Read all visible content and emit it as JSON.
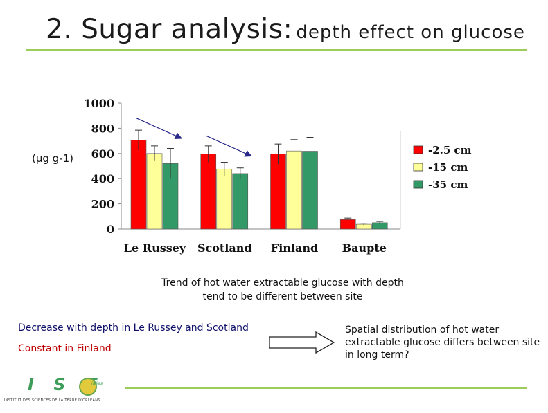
{
  "slide": {
    "title_main": "2. Sugar analysis:",
    "title_sub": "depth effect on glucose",
    "caption_line1": "Trend of hot water extractable glucose  with depth",
    "caption_line2": "tend to be different between site",
    "bullet_1": "Decrease with depth in Le Russey and Scotland",
    "bullet_2": "Constant in Finland",
    "conclusion": "Spatial distribution of hot water extractable glucose differs between site in long term?",
    "colors": {
      "accent_rule": "#9ccc5a",
      "bullet_1": "#10106a",
      "bullet_2": "#c00000"
    }
  },
  "logo": {
    "letters": "I S T",
    "suffix": "idées",
    "caption": "INSTITUT DES SCIENCES DE LA TERRE D'ORLÉANS"
  },
  "chart_data": {
    "type": "bar",
    "ylabel": "(µg g-1)",
    "ylim": [
      0,
      1000
    ],
    "yticks": [
      0,
      200,
      400,
      600,
      800,
      1000
    ],
    "categories": [
      "Le Russey",
      "Scotland",
      "Finland",
      "Baupte"
    ],
    "series": [
      {
        "name": "-2.5 cm",
        "color": "#ff0000",
        "values": [
          705,
          595,
          595,
          75
        ],
        "errors": [
          80,
          65,
          80,
          12
        ]
      },
      {
        "name": "-15 cm",
        "color": "#ffff99",
        "values": [
          600,
          475,
          620,
          38
        ],
        "errors": [
          60,
          55,
          90,
          8
        ]
      },
      {
        "name": "-35 cm",
        "color": "#339966",
        "values": [
          520,
          440,
          618,
          50
        ],
        "errors": [
          120,
          45,
          110,
          10
        ]
      }
    ],
    "legend_position": "right",
    "annotations": [
      "decreasing-trend-arrow-le-russey",
      "decreasing-trend-arrow-scotland"
    ]
  }
}
